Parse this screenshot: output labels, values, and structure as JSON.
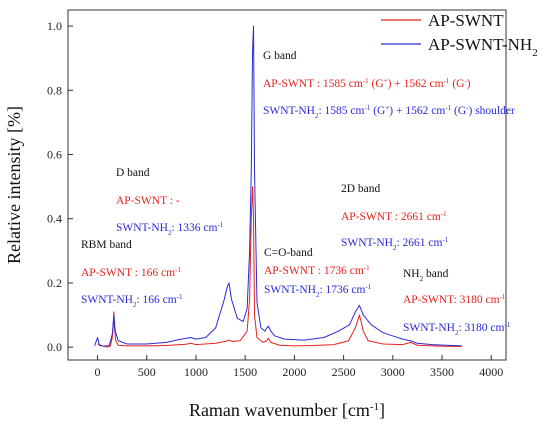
{
  "chart_data": {
    "type": "line",
    "xlabel": "Raman wavenumber [cm",
    "xlabel_sup": "-1",
    "xlabel_end": "]",
    "ylabel": "Relative intensity [%]",
    "xlim": [
      -300,
      4150
    ],
    "ylim": [
      -0.04,
      1.05
    ],
    "x_ticks": [
      0,
      500,
      1000,
      1500,
      2000,
      2500,
      3000,
      3500,
      4000
    ],
    "y_ticks": [
      "0.0",
      "0.2",
      "0.4",
      "0.6",
      "0.8",
      "1.0"
    ],
    "y_tick_values": [
      0.0,
      0.2,
      0.4,
      0.6,
      0.8,
      1.0
    ],
    "legend_position": "top-right",
    "series": [
      {
        "name": "AP-SWNT",
        "color": "#e8211d",
        "points": [
          [
            0,
            0.01
          ],
          [
            60,
            0.003
          ],
          [
            100,
            0.0
          ],
          [
            130,
            0.003
          ],
          [
            150,
            0.03
          ],
          [
            160,
            0.07
          ],
          [
            166,
            0.11
          ],
          [
            172,
            0.06
          ],
          [
            185,
            0.02
          ],
          [
            210,
            0.006
          ],
          [
            300,
            0.004
          ],
          [
            500,
            0.004
          ],
          [
            700,
            0.005
          ],
          [
            900,
            0.009
          ],
          [
            950,
            0.012
          ],
          [
            1000,
            0.008
          ],
          [
            1200,
            0.012
          ],
          [
            1300,
            0.018
          ],
          [
            1336,
            0.022
          ],
          [
            1370,
            0.018
          ],
          [
            1450,
            0.02
          ],
          [
            1520,
            0.05
          ],
          [
            1545,
            0.15
          ],
          [
            1562,
            0.4
          ],
          [
            1575,
            0.5
          ],
          [
            1585,
            0.4
          ],
          [
            1595,
            0.1
          ],
          [
            1620,
            0.03
          ],
          [
            1680,
            0.015
          ],
          [
            1720,
            0.02
          ],
          [
            1736,
            0.028
          ],
          [
            1760,
            0.015
          ],
          [
            1850,
            0.006
          ],
          [
            2000,
            0.004
          ],
          [
            2200,
            0.005
          ],
          [
            2400,
            0.008
          ],
          [
            2550,
            0.02
          ],
          [
            2620,
            0.06
          ],
          [
            2661,
            0.1
          ],
          [
            2700,
            0.05
          ],
          [
            2750,
            0.02
          ],
          [
            2900,
            0.01
          ],
          [
            3100,
            0.008
          ],
          [
            3180,
            0.015
          ],
          [
            3250,
            0.006
          ],
          [
            3500,
            0.003
          ],
          [
            3700,
            0.002
          ]
        ]
      },
      {
        "name": "AP-SWNT-NH",
        "name_sub": "2",
        "color": "#2b2bd6",
        "points": [
          [
            -30,
            0.004
          ],
          [
            0,
            0.03
          ],
          [
            20,
            0.005
          ],
          [
            60,
            0.003
          ],
          [
            120,
            0.005
          ],
          [
            150,
            0.04
          ],
          [
            166,
            0.1
          ],
          [
            180,
            0.05
          ],
          [
            210,
            0.02
          ],
          [
            300,
            0.01
          ],
          [
            500,
            0.01
          ],
          [
            700,
            0.015
          ],
          [
            850,
            0.025
          ],
          [
            950,
            0.03
          ],
          [
            1000,
            0.025
          ],
          [
            1100,
            0.03
          ],
          [
            1200,
            0.06
          ],
          [
            1280,
            0.14
          ],
          [
            1320,
            0.19
          ],
          [
            1336,
            0.2
          ],
          [
            1360,
            0.15
          ],
          [
            1420,
            0.09
          ],
          [
            1480,
            0.08
          ],
          [
            1520,
            0.12
          ],
          [
            1545,
            0.3
          ],
          [
            1562,
            0.55
          ],
          [
            1575,
            0.92
          ],
          [
            1585,
            1.0
          ],
          [
            1595,
            0.55
          ],
          [
            1620,
            0.14
          ],
          [
            1660,
            0.06
          ],
          [
            1700,
            0.05
          ],
          [
            1720,
            0.06
          ],
          [
            1736,
            0.065
          ],
          [
            1760,
            0.05
          ],
          [
            1800,
            0.035
          ],
          [
            1900,
            0.025
          ],
          [
            2100,
            0.022
          ],
          [
            2300,
            0.03
          ],
          [
            2450,
            0.05
          ],
          [
            2560,
            0.07
          ],
          [
            2620,
            0.11
          ],
          [
            2661,
            0.13
          ],
          [
            2700,
            0.1
          ],
          [
            2780,
            0.07
          ],
          [
            2900,
            0.045
          ],
          [
            3000,
            0.035
          ],
          [
            3100,
            0.025
          ],
          [
            3180,
            0.02
          ],
          [
            3250,
            0.012
          ],
          [
            3400,
            0.008
          ],
          [
            3600,
            0.005
          ],
          [
            3700,
            0.004
          ]
        ]
      }
    ]
  },
  "annotations": {
    "g_band": "G band",
    "g_red_a": "AP-SWNT : 1585 cm",
    "g_red_b": " (G",
    "g_red_c": ") + 1562 cm",
    "g_red_d": " (G",
    "g_red_e": ")",
    "g_blue_a": "SWNT-NH",
    "g_blue_b": ": 1585 cm",
    "g_blue_c": " (G",
    "g_blue_d": ") + 1562 cm",
    "g_blue_e": " (G",
    "g_blue_f": ")  shoulder",
    "d_band": "D band",
    "d_red": "AP-SWNT : -",
    "d_blue_a": "SWNT-NH",
    "d_blue_b": ": 1336 cm",
    "rbm_band": "RBM band",
    "rbm_red_a": "AP-SWNT : 166 cm",
    "rbm_blue_a": "SWNT-NH",
    "rbm_blue_b": ": 166 cm",
    "co_band": "C=O-band",
    "co_red_a": "AP-SWNT : 1736 cm",
    "co_blue_a": "SWNT-NH",
    "co_blue_b": ": 1736 cm",
    "twod_band": "2D band",
    "twod_red_a": "AP-SWNT : 2661 cm",
    "twod_blue_a": "SWNT-NH",
    "twod_blue_b": ": 2661 cm",
    "nh2_band_a": "NH",
    "nh2_band_b": " band",
    "nh2_red_a": "AP-SWNT: 3180 cm",
    "nh2_blue_a": "SWNT-NH",
    "nh2_blue_b": ": 3180 cm",
    "sup_inv": "-1",
    "sub_two": "2",
    "sup_plus": "+",
    "sup_minus": "-"
  }
}
